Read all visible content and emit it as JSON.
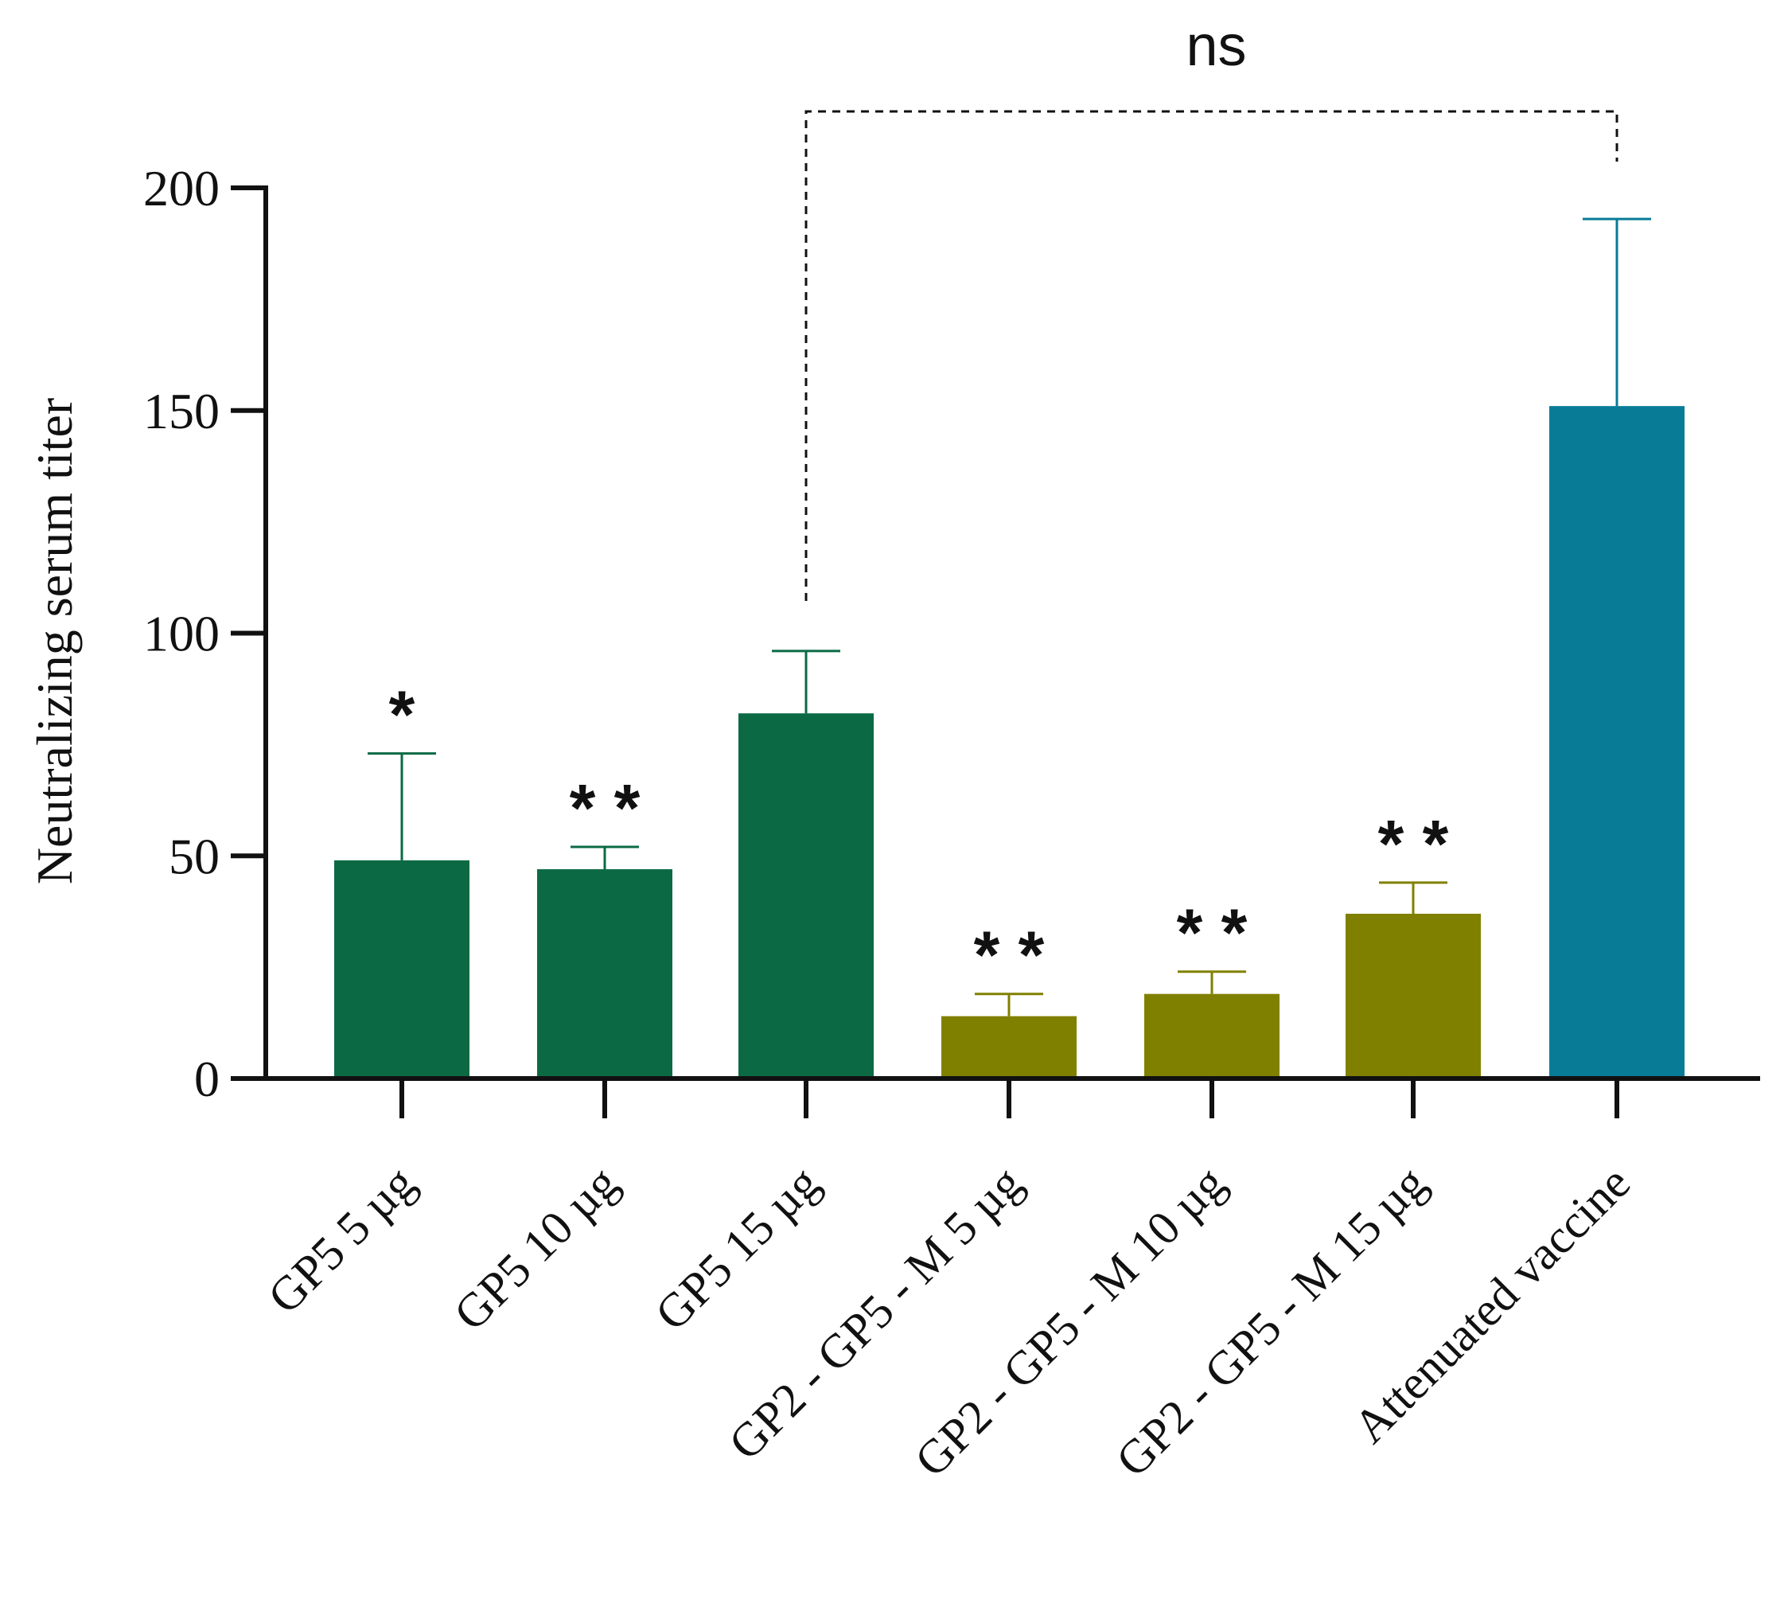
{
  "chart_data": {
    "type": "bar",
    "title": "",
    "xlabel": "",
    "ylabel": "Neutralizing serum titer",
    "ylim": [
      0,
      200
    ],
    "yticks": [
      0,
      50,
      100,
      150,
      200
    ],
    "ytick_labels": [
      "0",
      "50",
      "100",
      "150",
      "200"
    ],
    "grid": false,
    "categories": [
      "GP5 5 µg",
      "GP5 10 µg",
      "GP5 15 µg",
      "GP2 - GP5 - M 5 µg",
      "GP2 - GP5 - M 10 µg",
      "GP2 - GP5 - M 15 µg",
      "Attenuated vaccine"
    ],
    "values": [
      49,
      47,
      82,
      14,
      19,
      37,
      151
    ],
    "error_upper": [
      24,
      5,
      14,
      5,
      5,
      7,
      42
    ],
    "significance": [
      "*",
      "**",
      "",
      "**",
      "**",
      "**",
      ""
    ],
    "bar_colors": [
      "#0b6a44",
      "#0b6a44",
      "#0b6a44",
      "#808000",
      "#808000",
      "#808000",
      "#087b97"
    ],
    "comparison": {
      "from_category": "GP5 15 µg",
      "to_category": "Attenuated vaccine",
      "label": "ns"
    }
  }
}
